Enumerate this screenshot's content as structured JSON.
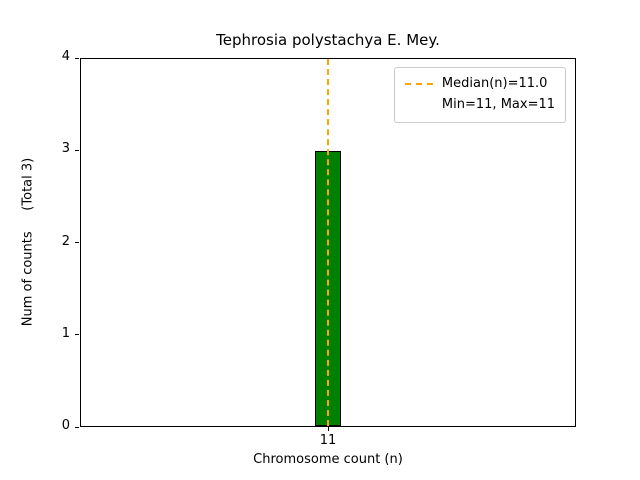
{
  "chart_data": {
    "type": "bar",
    "title": "Tephrosia polystachya E. Mey.",
    "xlabel": "Chromosome count (n)",
    "ylabel": "Num of counts     (Total 3)",
    "categories": [
      "11"
    ],
    "values": [
      3
    ],
    "ylim": [
      0,
      4
    ],
    "yticks": [
      0,
      1,
      2,
      3,
      4
    ],
    "grid": false,
    "bar_color": "#008000",
    "bar_edge_color": "#000000",
    "median_line": {
      "value": 11.0,
      "color": "#ffa500",
      "style": "dashed"
    },
    "legend": {
      "position": "top-right",
      "entries": [
        "Median(n)=11.0",
        "Min=11, Max=11"
      ]
    }
  }
}
